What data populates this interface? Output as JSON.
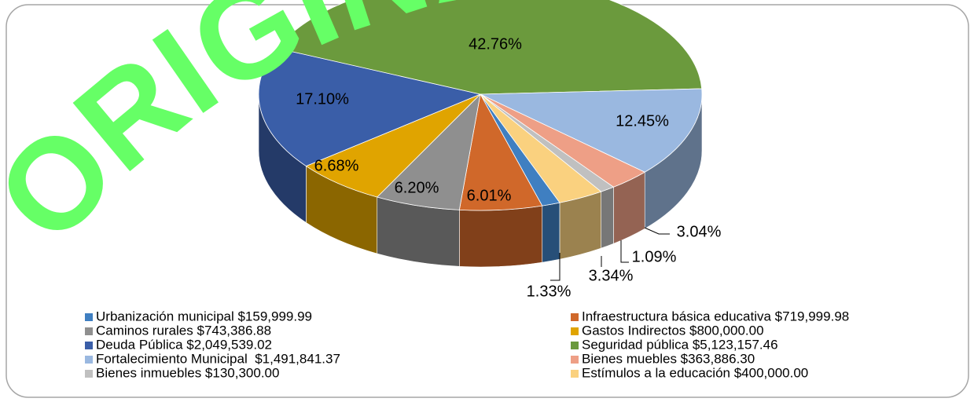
{
  "chart_data": {
    "type": "pie3d",
    "watermark": "ORIGINAL",
    "categories": [
      "Urbanización municipal $159,999.99",
      "Infraestructura básica educativa $719,999.98",
      "Caminos rurales $743,386.88",
      "Gastos Indirectos $800,000.00",
      "Deuda Pública $2,049,539.02",
      "Seguridad pública $5,123,157.46",
      "Fortalecimiento Municipal  $1,491,841.37",
      "Bienes muebles $363,886.30",
      "Bienes inmuebles $130,300.00",
      "Estímulos a la educación $400,000.00"
    ],
    "values": [
      1.33,
      6.01,
      6.2,
      6.68,
      17.1,
      42.76,
      12.45,
      3.04,
      1.09,
      3.34
    ],
    "value_labels": [
      "1.33%",
      "6.01%",
      "6.20%",
      "6.68%",
      "17.10%",
      "42.76%",
      "12.45%",
      "3.04%",
      "1.09%",
      "3.34%"
    ],
    "colors": [
      "#3f7fc1",
      "#d0682a",
      "#8f8f8f",
      "#e0a400",
      "#3a5ea8",
      "#6b9a3d",
      "#9ab8e0",
      "#ee9f86",
      "#c0c0c0",
      "#fad17f"
    ]
  }
}
